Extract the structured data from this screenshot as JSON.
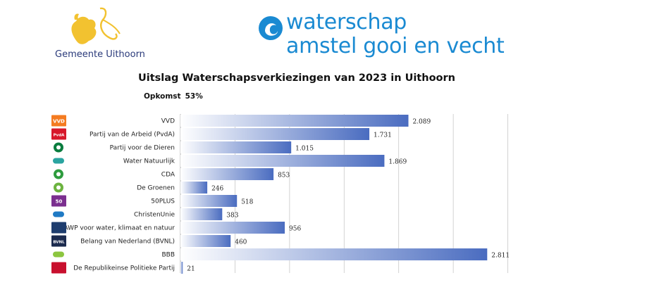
{
  "header": {
    "municipality_logo_text": "Gemeente Uithoorn",
    "waterschap_line1": "waterschap",
    "waterschap_line2": "amstel gooi en vecht"
  },
  "turnout": {
    "label": "Opkomst",
    "value": "53%"
  },
  "chart_data": {
    "type": "bar",
    "orientation": "horizontal",
    "title": "Uitslag Waterschapsverkiezingen van 2023 in Uithoorn",
    "categories": [
      "VVD",
      "Partij van de Arbeid (PvdA)",
      "Partij voor de Dieren",
      "Water Natuurlijk",
      "CDA",
      "De Groenen",
      "50PLUS",
      "ChristenUnie",
      "AWP voor water, klimaat en natuur",
      "Belang van Nederland (BVNL)",
      "BBB",
      "De Republikeinse Politieke Partij"
    ],
    "values": [
      2089,
      1731,
      1015,
      1869,
      853,
      246,
      518,
      383,
      956,
      460,
      2811,
      21
    ],
    "value_labels": [
      "2.089",
      "1.731",
      "1.015",
      "1.869",
      "853",
      "246",
      "518",
      "383",
      "956",
      "460",
      "2.811",
      "21"
    ],
    "xlim": [
      0,
      3000
    ],
    "grid": true,
    "legend": "none",
    "colors": {
      "bar_start": "#ffffff",
      "bar_end": "#4a6cc0",
      "grid": "#c8c8c8",
      "axis": "#b0b0b0"
    }
  },
  "party_logos": [
    {
      "icon": "vvd-logo-icon",
      "text": "VVD",
      "color": "#f47b20"
    },
    {
      "icon": "pvda-logo-icon",
      "text": "PvdA",
      "color": "#d7182a"
    },
    {
      "icon": "pvdd-logo-icon",
      "text": "",
      "color": "#0a7c3e"
    },
    {
      "icon": "water-natuurlijk-logo-icon",
      "text": "",
      "color": "#2aa4a0"
    },
    {
      "icon": "cda-logo-icon",
      "text": "",
      "color": "#2e9c3e"
    },
    {
      "icon": "de-groenen-logo-icon",
      "text": "",
      "color": "#6cb33f"
    },
    {
      "icon": "50plus-logo-icon",
      "text": "50",
      "color": "#7b2f8f"
    },
    {
      "icon": "christenunie-logo-icon",
      "text": "",
      "color": "#1f7ac4"
    },
    {
      "icon": "awp-logo-icon",
      "text": "",
      "color": "#1e3d6e"
    },
    {
      "icon": "bvnl-logo-icon",
      "text": "BVNL",
      "color": "#1b2a4e"
    },
    {
      "icon": "bbb-logo-icon",
      "text": "",
      "color": "#8cc63f"
    },
    {
      "icon": "rpp-logo-icon",
      "text": "",
      "color": "#c8102e"
    }
  ]
}
